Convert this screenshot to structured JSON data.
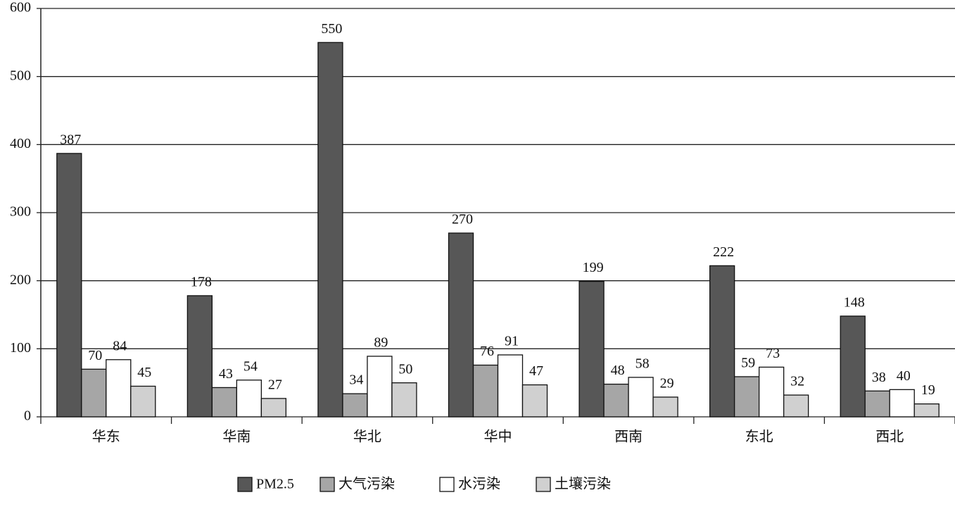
{
  "chart_data": {
    "type": "bar",
    "categories": [
      "华东",
      "华南",
      "华北",
      "华中",
      "西南",
      "东北",
      "西北"
    ],
    "series": [
      {
        "name": "PM2.5",
        "color": "#575757",
        "values": [
          387,
          178,
          550,
          270,
          199,
          222,
          148
        ]
      },
      {
        "name": "大气污染",
        "color": "#a6a6a6",
        "values": [
          70,
          43,
          34,
          76,
          48,
          59,
          38
        ]
      },
      {
        "name": "水污染",
        "color": "#ffffff",
        "values": [
          84,
          54,
          89,
          91,
          58,
          73,
          40
        ]
      },
      {
        "name": "土壤污染",
        "color": "#d0d0d0",
        "values": [
          45,
          27,
          50,
          47,
          29,
          32,
          19
        ]
      }
    ],
    "ylim": [
      0,
      600
    ],
    "yticks": [
      0,
      100,
      200,
      300,
      400,
      500,
      600
    ],
    "grid": true,
    "legend": "bottom"
  }
}
